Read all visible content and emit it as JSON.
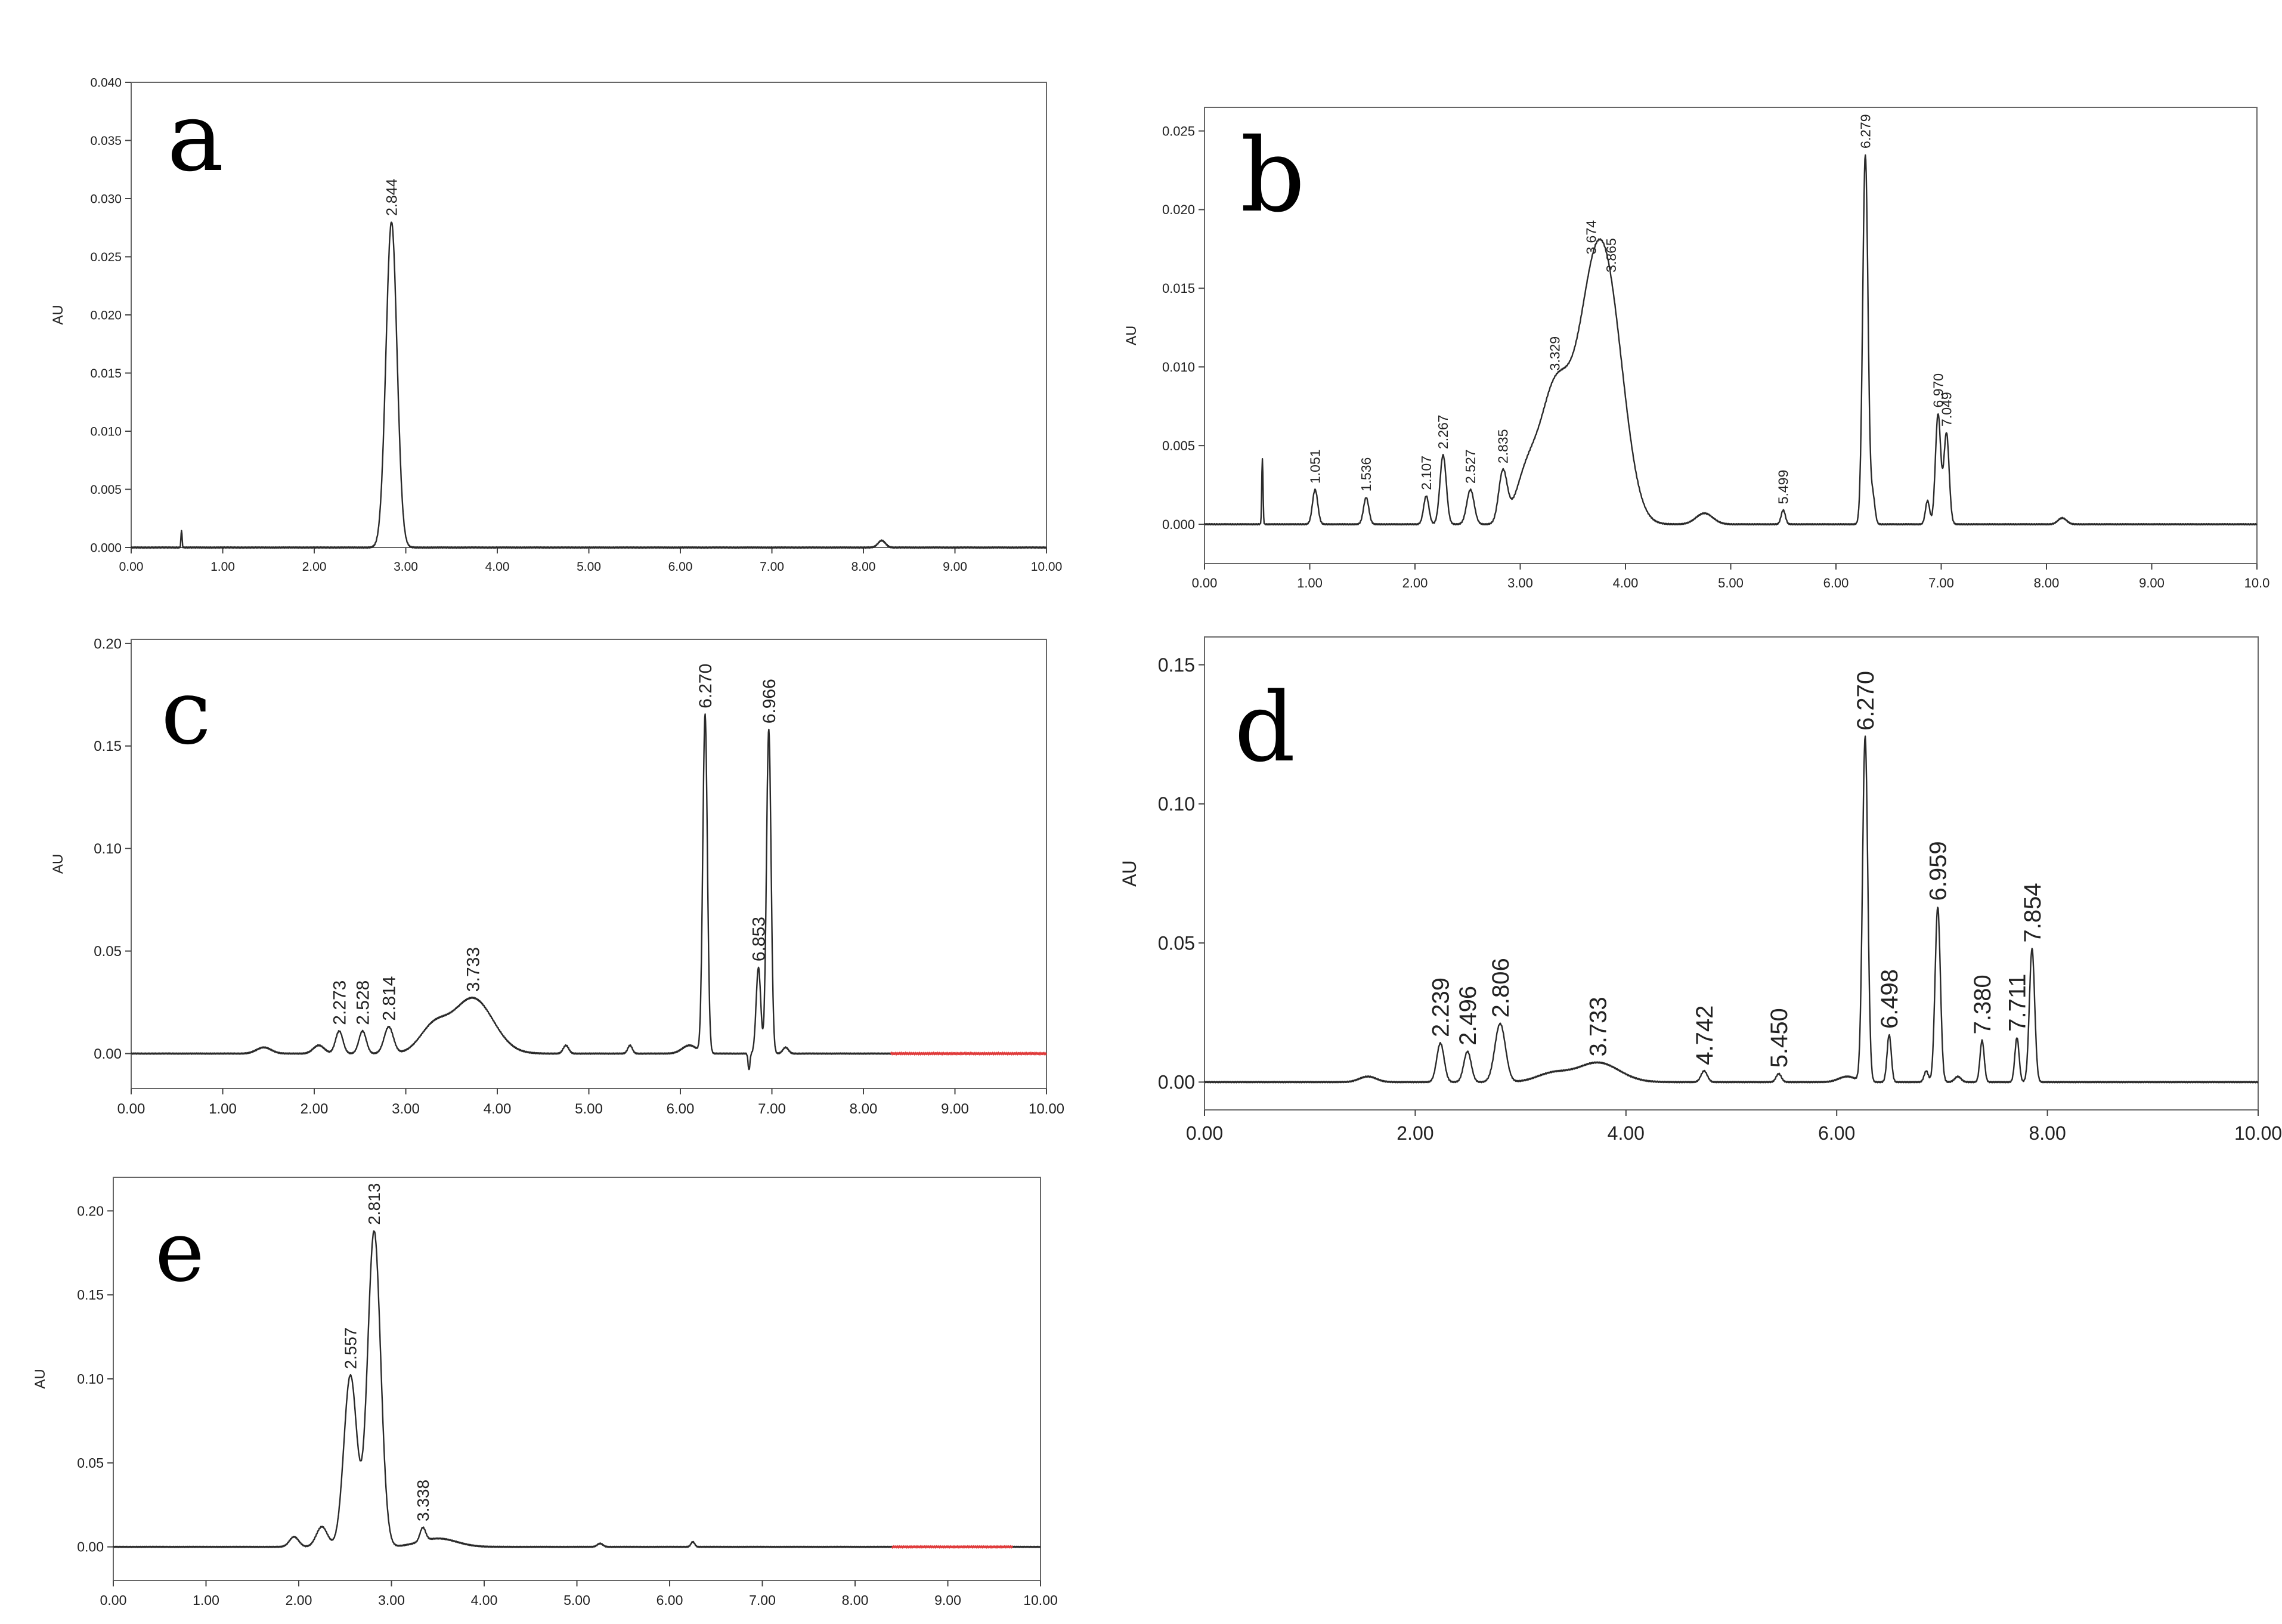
{
  "chart_data": [
    {
      "type": "line",
      "panel_label": "a",
      "ylabel": "AU",
      "xlim": [
        0,
        10
      ],
      "ylim": [
        0,
        0.04
      ],
      "x_ticks": [
        "0.00",
        "1.00",
        "2.00",
        "3.00",
        "4.00",
        "5.00",
        "6.00",
        "7.00",
        "8.00",
        "9.00",
        "10.00"
      ],
      "y_ticks": [
        "0.000",
        "0.005",
        "0.010",
        "0.015",
        "0.020",
        "0.025",
        "0.030",
        "0.035",
        "0.040"
      ],
      "peaks": [
        {
          "rt": 2.844,
          "height": 0.028,
          "width": 0.06,
          "label": "2.844"
        }
      ],
      "minor_features": [
        {
          "rt": 0.55,
          "height": 0.0015,
          "width": 0.006
        },
        {
          "rt": 8.2,
          "height": 0.0006,
          "width": 0.04
        }
      ]
    },
    {
      "type": "line",
      "panel_label": "b",
      "ylabel": "AU",
      "xlim": [
        0,
        10
      ],
      "ylim": [
        -0.0025,
        0.0265
      ],
      "x_ticks": [
        "0.00",
        "1.00",
        "2.00",
        "3.00",
        "4.00",
        "5.00",
        "6.00",
        "7.00",
        "8.00",
        "9.00",
        "10.0"
      ],
      "y_ticks": [
        "0.000",
        "0.005",
        "0.010",
        "0.015",
        "0.020",
        "0.025"
      ],
      "peaks": [
        {
          "rt": 1.051,
          "height": 0.0022,
          "width": 0.025,
          "label": "1.051"
        },
        {
          "rt": 1.536,
          "height": 0.0017,
          "width": 0.025,
          "label": "1.536"
        },
        {
          "rt": 2.107,
          "height": 0.0018,
          "width": 0.025,
          "label": "2.107"
        },
        {
          "rt": 2.267,
          "height": 0.0044,
          "width": 0.03,
          "label": "2.267"
        },
        {
          "rt": 2.527,
          "height": 0.0022,
          "width": 0.035,
          "label": "2.527"
        },
        {
          "rt": 2.835,
          "height": 0.0032,
          "width": 0.04,
          "label": "2.835"
        },
        {
          "rt": 3.329,
          "height": 0.0085,
          "width": 0.15,
          "label": "3.329"
        },
        {
          "rt": 3.674,
          "height": 0.0115,
          "width": 0.15,
          "label": "3.674"
        },
        {
          "rt": 3.865,
          "height": 0.0105,
          "width": 0.15,
          "label": "3.865"
        },
        {
          "rt": 5.499,
          "height": 0.0009,
          "width": 0.02,
          "label": "5.499"
        },
        {
          "rt": 6.279,
          "height": 0.0235,
          "width": 0.025,
          "label": "6.279"
        },
        {
          "rt": 6.97,
          "height": 0.007,
          "width": 0.025,
          "label": "6.970"
        },
        {
          "rt": 7.05,
          "height": 0.0058,
          "width": 0.025,
          "label": "7.049"
        }
      ],
      "minor_features": [
        {
          "rt": 0.55,
          "height": 0.0042,
          "width": 0.006
        },
        {
          "rt": 3.05,
          "height": 0.0025,
          "width": 0.1
        },
        {
          "rt": 4.75,
          "height": 0.0007,
          "width": 0.08
        },
        {
          "rt": 6.35,
          "height": 0.0018,
          "width": 0.02
        },
        {
          "rt": 6.87,
          "height": 0.0015,
          "width": 0.02
        },
        {
          "rt": 8.15,
          "height": 0.0004,
          "width": 0.04
        }
      ]
    },
    {
      "type": "line",
      "panel_label": "c",
      "ylabel": "AU",
      "xlim": [
        0,
        10
      ],
      "ylim": [
        -0.017,
        0.202
      ],
      "x_ticks": [
        "0.00",
        "1.00",
        "2.00",
        "3.00",
        "4.00",
        "5.00",
        "6.00",
        "7.00",
        "8.00",
        "9.00",
        "10.00"
      ],
      "y_ticks": [
        "0.00",
        "0.05",
        "0.10",
        "0.15",
        "0.20"
      ],
      "peaks": [
        {
          "rt": 2.273,
          "height": 0.011,
          "width": 0.04,
          "label": "2.273"
        },
        {
          "rt": 2.528,
          "height": 0.011,
          "width": 0.04,
          "label": "2.528"
        },
        {
          "rt": 2.814,
          "height": 0.013,
          "width": 0.05,
          "label": "2.814"
        },
        {
          "rt": 3.733,
          "height": 0.027,
          "width": 0.22,
          "label": "3.733"
        },
        {
          "rt": 6.27,
          "height": 0.165,
          "width": 0.025,
          "label": "6.270"
        },
        {
          "rt": 6.853,
          "height": 0.042,
          "width": 0.025,
          "label": "6.853"
        },
        {
          "rt": 6.966,
          "height": 0.158,
          "width": 0.025,
          "label": "6.966"
        }
      ],
      "minor_features": [
        {
          "rt": 1.45,
          "height": 0.003,
          "width": 0.08
        },
        {
          "rt": 2.05,
          "height": 0.004,
          "width": 0.06
        },
        {
          "rt": 3.3,
          "height": 0.012,
          "width": 0.15
        },
        {
          "rt": 4.75,
          "height": 0.004,
          "width": 0.03
        },
        {
          "rt": 5.45,
          "height": 0.004,
          "width": 0.025
        },
        {
          "rt": 6.1,
          "height": 0.004,
          "width": 0.08
        },
        {
          "rt": 6.75,
          "height": -0.008,
          "width": 0.01
        },
        {
          "rt": 7.15,
          "height": 0.003,
          "width": 0.03
        }
      ],
      "baseline_color_segment": {
        "from": 8.3,
        "to": 10,
        "color": "#e03a3a"
      }
    },
    {
      "type": "line",
      "panel_label": "d",
      "ylabel": "AU",
      "xlim": [
        0,
        10
      ],
      "ylim": [
        -0.01,
        0.16
      ],
      "x_ticks": [
        "0.00",
        "2.00",
        "4.00",
        "6.00",
        "8.00",
        "10.00"
      ],
      "y_ticks": [
        "0.00",
        "0.05",
        "0.10",
        "0.15"
      ],
      "peaks": [
        {
          "rt": 2.239,
          "height": 0.014,
          "width": 0.035,
          "label": "2.239"
        },
        {
          "rt": 2.496,
          "height": 0.011,
          "width": 0.035,
          "label": "2.496"
        },
        {
          "rt": 2.806,
          "height": 0.021,
          "width": 0.05,
          "label": "2.806"
        },
        {
          "rt": 3.733,
          "height": 0.007,
          "width": 0.2,
          "label": "3.733"
        },
        {
          "rt": 4.742,
          "height": 0.004,
          "width": 0.03,
          "label": "4.742"
        },
        {
          "rt": 5.45,
          "height": 0.003,
          "width": 0.025,
          "label": "5.450"
        },
        {
          "rt": 6.27,
          "height": 0.124,
          "width": 0.025,
          "label": "6.270"
        },
        {
          "rt": 6.498,
          "height": 0.017,
          "width": 0.02,
          "label": "6.498"
        },
        {
          "rt": 6.959,
          "height": 0.063,
          "width": 0.025,
          "label": "6.959"
        },
        {
          "rt": 7.38,
          "height": 0.015,
          "width": 0.02,
          "label": "7.380"
        },
        {
          "rt": 7.711,
          "height": 0.016,
          "width": 0.02,
          "label": "7.711"
        },
        {
          "rt": 7.854,
          "height": 0.048,
          "width": 0.025,
          "label": "7.854"
        }
      ],
      "minor_features": [
        {
          "rt": 1.55,
          "height": 0.002,
          "width": 0.08
        },
        {
          "rt": 3.3,
          "height": 0.003,
          "width": 0.15
        },
        {
          "rt": 6.1,
          "height": 0.002,
          "width": 0.08
        },
        {
          "rt": 6.85,
          "height": 0.004,
          "width": 0.02
        },
        {
          "rt": 7.15,
          "height": 0.002,
          "width": 0.03
        }
      ]
    },
    {
      "type": "line",
      "panel_label": "e",
      "ylabel": "AU",
      "xlim": [
        0,
        10
      ],
      "ylim": [
        -0.02,
        0.22
      ],
      "x_ticks": [
        "0.00",
        "1.00",
        "2.00",
        "3.00",
        "4.00",
        "5.00",
        "6.00",
        "7.00",
        "8.00",
        "9.00",
        "10.00"
      ],
      "y_ticks": [
        "0.00",
        "0.05",
        "0.10",
        "0.15",
        "0.20"
      ],
      "peaks": [
        {
          "rt": 2.557,
          "height": 0.102,
          "width": 0.07,
          "label": "2.557"
        },
        {
          "rt": 2.813,
          "height": 0.188,
          "width": 0.07,
          "label": "2.813"
        },
        {
          "rt": 3.338,
          "height": 0.008,
          "width": 0.03,
          "label": "3.338"
        }
      ],
      "minor_features": [
        {
          "rt": 1.95,
          "height": 0.006,
          "width": 0.05
        },
        {
          "rt": 2.25,
          "height": 0.012,
          "width": 0.06
        },
        {
          "rt": 3.5,
          "height": 0.005,
          "width": 0.2
        },
        {
          "rt": 5.25,
          "height": 0.002,
          "width": 0.03
        },
        {
          "rt": 6.25,
          "height": 0.003,
          "width": 0.02
        }
      ],
      "baseline_color_segment": {
        "from": 8.4,
        "to": 9.7,
        "color": "#e03a3a"
      }
    }
  ]
}
